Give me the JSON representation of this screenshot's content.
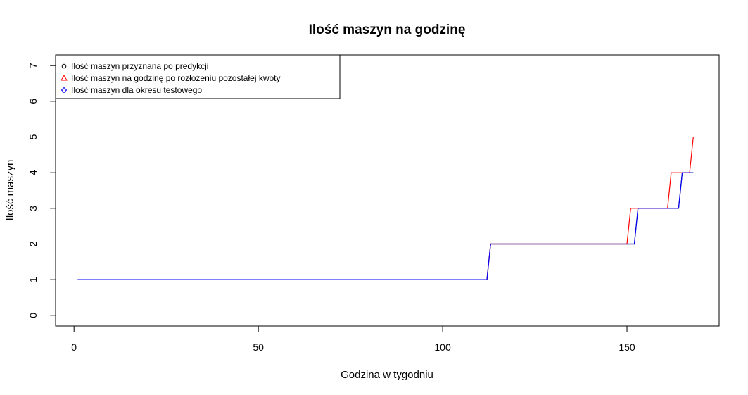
{
  "chart_data": {
    "type": "line",
    "title": "Ilość maszyn na godzinę",
    "xlabel": "Godzina w tygodniu",
    "ylabel": "Ilość maszyn",
    "xlim": [
      -5,
      175
    ],
    "ylim": [
      -0.3,
      7.3
    ],
    "xticks": [
      0,
      50,
      100,
      150
    ],
    "yticks": [
      0,
      1,
      2,
      3,
      4,
      5,
      6,
      7
    ],
    "grid": false,
    "legend_position": "top-left",
    "series": [
      {
        "name": "Ilość maszyn przyznana po predykcji",
        "color": "#000000",
        "marker": "circle",
        "x": [
          1,
          112,
          113,
          152,
          153,
          164,
          165,
          168
        ],
        "y": [
          1,
          1,
          2,
          2,
          3,
          3,
          4,
          4
        ]
      },
      {
        "name": "Ilość maszyn na godzinę po rozłożeniu pozostałej kwoty",
        "color": "#ff0000",
        "marker": "triangle",
        "x": [
          1,
          112,
          113,
          150,
          151,
          161,
          162,
          167,
          168
        ],
        "y": [
          1,
          1,
          2,
          2,
          3,
          3,
          4,
          4,
          5
        ]
      },
      {
        "name": "Ilość maszyn dla okresu testowego",
        "color": "#0000ff",
        "marker": "diamond",
        "x": [
          1,
          112,
          113,
          152,
          153,
          164,
          165,
          168
        ],
        "y": [
          1,
          1,
          2,
          2,
          3,
          3,
          4,
          4
        ]
      }
    ]
  }
}
